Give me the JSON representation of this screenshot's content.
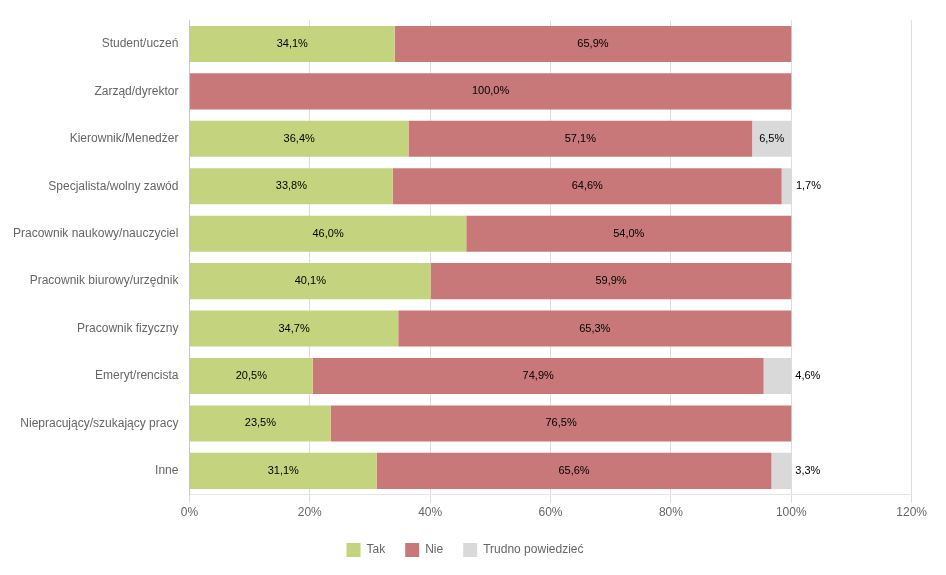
{
  "chart_data": {
    "type": "bar",
    "orientation": "horizontal",
    "stacked": true,
    "data_labels": true,
    "grid": true,
    "legend": "bottom",
    "categories": [
      "Student/uczeń",
      "Zarząd/dyrektor",
      "Kierownik/Menedżer",
      "Specjalista/wolny zawód",
      "Pracownik naukowy/nauczyciel",
      "Pracownik biurowy/urzędnik",
      "Pracownik fizyczny",
      "Emeryt/rencista",
      "Niepracujący/szukający pracy",
      "Inne"
    ],
    "series": [
      {
        "name": "Tak",
        "color": "#c4d47e",
        "values": [
          34.1,
          0.0,
          36.4,
          33.8,
          46.0,
          40.1,
          34.7,
          20.5,
          23.5,
          31.1
        ],
        "value_labels": [
          "34,1%",
          null,
          "36,4%",
          "33,8%",
          "46,0%",
          "40,1%",
          "34,7%",
          "20,5%",
          "23,5%",
          "31,1%"
        ]
      },
      {
        "name": "Nie",
        "color": "#c87878",
        "values": [
          65.9,
          100.0,
          57.1,
          64.6,
          54.0,
          59.9,
          65.3,
          74.9,
          76.5,
          65.6
        ],
        "value_labels": [
          "65,9%",
          "100,0%",
          "57,1%",
          "64,6%",
          "54,0%",
          "59,9%",
          "65,3%",
          "74,9%",
          "76,5%",
          "65,6%"
        ]
      },
      {
        "name": "Trudno powiedzieć",
        "color": "#d9d9d9",
        "values": [
          0.0,
          0.0,
          6.5,
          1.7,
          0.0,
          0.0,
          0.0,
          4.6,
          0.0,
          3.3
        ],
        "value_labels": [
          null,
          null,
          "6,5%",
          "1,7%",
          null,
          null,
          null,
          "4,6%",
          null,
          "3,3%"
        ]
      }
    ],
    "xlim": [
      0,
      120
    ],
    "xticks": [
      {
        "value": 0,
        "label": "0%"
      },
      {
        "value": 20,
        "label": "20%"
      },
      {
        "value": 40,
        "label": "40%"
      },
      {
        "value": 60,
        "label": "60%"
      },
      {
        "value": 80,
        "label": "80%"
      },
      {
        "value": 100,
        "label": "100%"
      },
      {
        "value": 120,
        "label": "120%"
      }
    ]
  }
}
